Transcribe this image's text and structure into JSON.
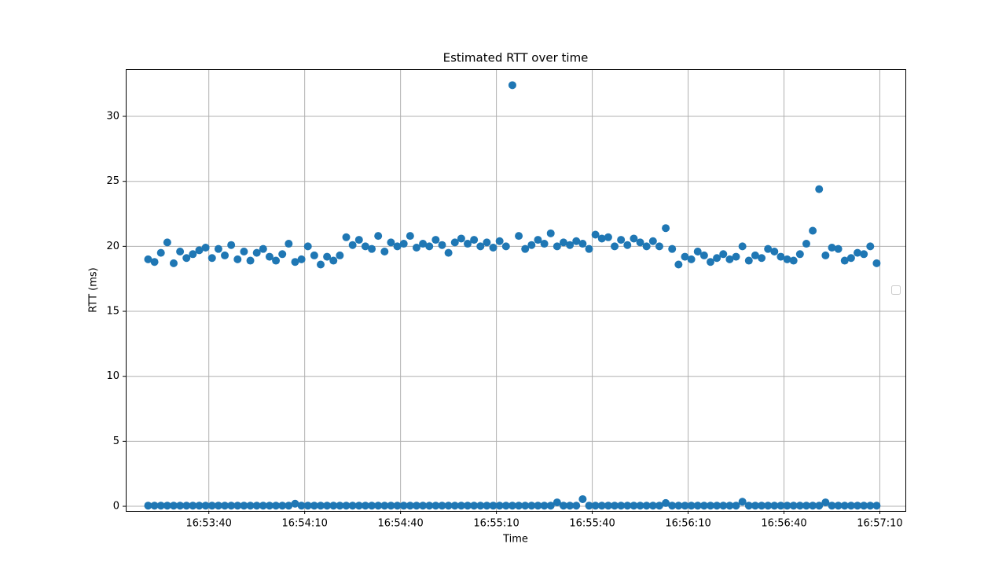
{
  "chart_data": {
    "type": "scatter",
    "title": "Estimated RTT over time",
    "x_label": "Time",
    "y_label": "RTT (ms)",
    "x": [
      "16:53:21",
      "16:53:23",
      "16:53:25",
      "16:53:27",
      "16:53:29",
      "16:53:31",
      "16:53:33",
      "16:53:35",
      "16:53:37",
      "16:53:39",
      "16:53:41",
      "16:53:43",
      "16:53:45",
      "16:53:47",
      "16:53:49",
      "16:53:51",
      "16:53:53",
      "16:53:55",
      "16:53:57",
      "16:53:59",
      "16:54:01",
      "16:54:03",
      "16:54:05",
      "16:54:07",
      "16:54:09",
      "16:54:11",
      "16:54:13",
      "16:54:15",
      "16:54:17",
      "16:54:19",
      "16:54:21",
      "16:54:23",
      "16:54:25",
      "16:54:27",
      "16:54:29",
      "16:54:31",
      "16:54:33",
      "16:54:35",
      "16:54:37",
      "16:54:39",
      "16:54:41",
      "16:54:43",
      "16:54:45",
      "16:54:47",
      "16:54:49",
      "16:54:51",
      "16:54:53",
      "16:54:55",
      "16:54:57",
      "16:54:59",
      "16:55:01",
      "16:55:03",
      "16:55:05",
      "16:55:07",
      "16:55:09",
      "16:55:11",
      "16:55:13",
      "16:55:15",
      "16:55:17",
      "16:55:19",
      "16:55:21",
      "16:55:23",
      "16:55:25",
      "16:55:27",
      "16:55:29",
      "16:55:31",
      "16:55:33",
      "16:55:35",
      "16:55:37",
      "16:55:39",
      "16:55:41",
      "16:55:43",
      "16:55:45",
      "16:55:47",
      "16:55:49",
      "16:55:51",
      "16:55:53",
      "16:55:55",
      "16:55:57",
      "16:55:59",
      "16:56:01",
      "16:56:03",
      "16:56:05",
      "16:56:07",
      "16:56:09",
      "16:56:11",
      "16:56:13",
      "16:56:15",
      "16:56:17",
      "16:56:19",
      "16:56:21",
      "16:56:23",
      "16:56:25",
      "16:56:27",
      "16:56:29",
      "16:56:31",
      "16:56:33",
      "16:56:35",
      "16:56:37",
      "16:56:39",
      "16:56:41",
      "16:56:43",
      "16:56:45",
      "16:56:47",
      "16:56:49",
      "16:56:51",
      "16:56:53",
      "16:56:55",
      "16:56:57",
      "16:56:59",
      "16:57:01",
      "16:57:03",
      "16:57:05",
      "16:57:07",
      "16:57:09"
    ],
    "series": [
      {
        "color": "#1f77b4",
        "values": [
          19.0,
          18.8,
          19.5,
          20.3,
          18.7,
          19.6,
          19.1,
          19.4,
          19.7,
          19.9,
          19.1,
          19.8,
          19.3,
          20.1,
          19.0,
          19.6,
          18.9,
          19.5,
          19.8,
          19.2,
          18.9,
          19.4,
          20.2,
          18.8,
          19.0,
          20.0,
          19.3,
          18.6,
          19.2,
          18.9,
          19.3,
          20.7,
          20.1,
          20.5,
          20.0,
          19.8,
          20.8,
          19.6,
          20.3,
          20.0,
          20.2,
          20.8,
          19.9,
          20.2,
          20.0,
          20.5,
          20.1,
          19.5,
          20.3,
          20.6,
          20.2,
          20.5,
          20.0,
          20.3,
          19.9,
          20.4,
          20.0,
          32.4,
          20.8,
          19.8,
          20.1,
          20.5,
          20.2,
          21.0,
          20.0,
          20.3,
          20.1,
          20.4,
          20.2,
          19.8,
          20.9,
          20.6,
          20.7,
          20.0,
          20.5,
          20.1,
          20.6,
          20.3,
          20.0,
          20.4,
          20.0,
          21.4,
          19.8,
          18.6,
          19.2,
          19.0,
          19.6,
          19.3,
          18.8,
          19.1,
          19.4,
          19.0,
          19.2,
          20.0,
          18.9,
          19.3,
          19.1,
          19.8,
          19.6,
          19.2,
          19.0,
          18.9,
          19.4,
          20.2,
          21.2,
          24.4,
          19.3,
          19.9,
          19.8,
          18.9,
          19.1,
          19.5,
          19.4,
          20.0,
          18.7
        ]
      },
      {
        "color": "#1f77b4",
        "values": [
          0.05,
          0.05,
          0.05,
          0.05,
          0.05,
          0.05,
          0.05,
          0.05,
          0.05,
          0.05,
          0.05,
          0.05,
          0.05,
          0.05,
          0.05,
          0.05,
          0.05,
          0.05,
          0.05,
          0.05,
          0.05,
          0.05,
          0.05,
          0.2,
          0.05,
          0.05,
          0.05,
          0.05,
          0.05,
          0.05,
          0.05,
          0.05,
          0.05,
          0.05,
          0.05,
          0.05,
          0.05,
          0.05,
          0.05,
          0.05,
          0.05,
          0.05,
          0.05,
          0.05,
          0.05,
          0.05,
          0.05,
          0.05,
          0.05,
          0.05,
          0.05,
          0.05,
          0.05,
          0.05,
          0.05,
          0.05,
          0.05,
          0.05,
          0.05,
          0.05,
          0.05,
          0.05,
          0.05,
          0.05,
          0.3,
          0.05,
          0.05,
          0.05,
          0.55,
          0.05,
          0.05,
          0.05,
          0.05,
          0.05,
          0.05,
          0.05,
          0.05,
          0.05,
          0.05,
          0.05,
          0.05,
          0.25,
          0.05,
          0.05,
          0.05,
          0.05,
          0.05,
          0.05,
          0.05,
          0.05,
          0.05,
          0.05,
          0.05,
          0.35,
          0.05,
          0.05,
          0.05,
          0.05,
          0.05,
          0.05,
          0.05,
          0.05,
          0.05,
          0.05,
          0.05,
          0.05,
          0.3,
          0.05,
          0.05,
          0.05,
          0.05,
          0.05,
          0.05,
          0.05,
          0.05
        ]
      }
    ],
    "xlim": [
      "16:53:14",
      "16:57:18"
    ],
    "xticks": [
      "16:53:40",
      "16:54:10",
      "16:54:40",
      "16:55:10",
      "16:55:40",
      "16:56:10",
      "16:56:40",
      "16:57:10"
    ],
    "ylim": [
      -0.36,
      33.63
    ],
    "yticks": [
      0,
      5,
      10,
      15,
      20,
      25,
      30
    ],
    "grid": true
  }
}
